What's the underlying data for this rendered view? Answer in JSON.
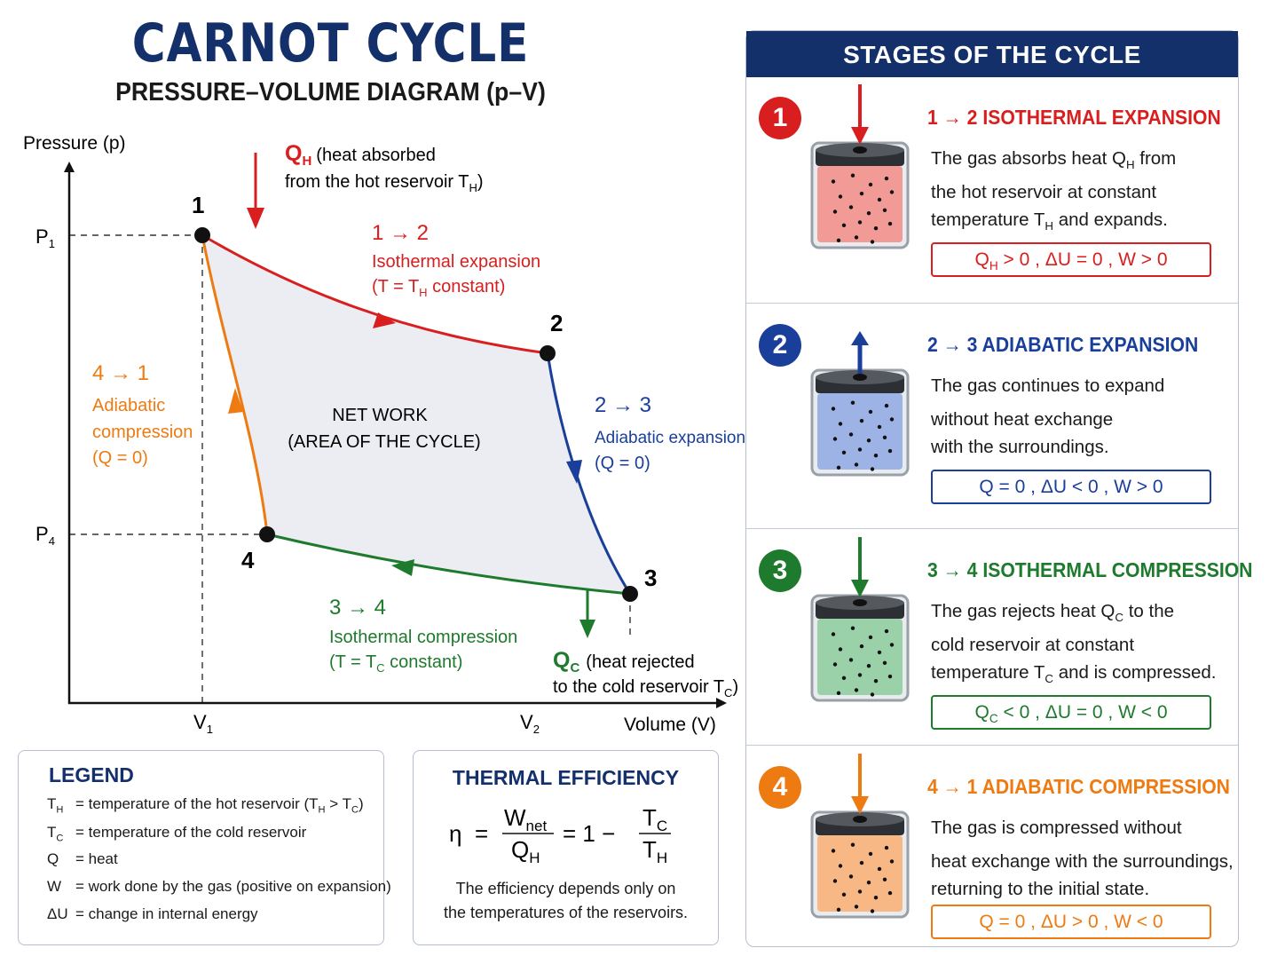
{
  "title": "CARNOT CYCLE",
  "subtitle": "PRESSURE–VOLUME DIAGRAM (p–V)",
  "diagram": {
    "y_axis_label": "Pressure (p)",
    "x_axis_label": "Volume (V)",
    "p1": "P",
    "p1_sub": "1",
    "p4": "P",
    "p4_sub": "4",
    "v1": "V",
    "v1_sub": "1",
    "v2": "V",
    "v2_sub": "2",
    "points": [
      "1",
      "2",
      "3",
      "4"
    ],
    "center_label_1": "NET WORK",
    "center_label_2": "(AREA OF THE CYCLE)",
    "qh_symbol": "Q",
    "qh_sub": "H",
    "qh_text_1": "(heat absorbed",
    "qh_text_2": "from the hot reservoir T",
    "qh_text_2_sub": "H",
    "qc_symbol": "Q",
    "qc_sub": "C",
    "qc_text_1": "(heat rejected",
    "qc_text_2": "to the cold reservoir T",
    "qc_text_2_sub": "C",
    "proc_12_arrow": "1 → 2",
    "proc_12_name": "Isothermal expansion",
    "proc_12_cond": "(T = T",
    "proc_12_cond_sub": "H",
    "proc_12_cond_end": " constant)",
    "proc_23_arrow": "2 → 3",
    "proc_23_name": "Adiabatic expansion",
    "proc_23_cond": "(Q = 0)",
    "proc_34_arrow": "3 → 4",
    "proc_34_name": "Isothermal compression",
    "proc_34_cond": "(T = T",
    "proc_34_cond_sub": "C",
    "proc_34_cond_end": " constant)",
    "proc_41_arrow": "4 → 1",
    "proc_41_name_1": "Adiabatic",
    "proc_41_name_2": "compression",
    "proc_41_cond": "(Q = 0)"
  },
  "legend": {
    "title": "LEGEND",
    "rows": [
      {
        "symbol": "T",
        "sub": "H",
        "text": "= temperature of the hot reservoir (T",
        "s1": "H",
        "mid": " > T",
        "s2": "C",
        "end": ")"
      },
      {
        "symbol": "T",
        "sub": "C",
        "text": "= temperature of the cold reservoir"
      },
      {
        "symbol": "Q",
        "text": "= heat"
      },
      {
        "symbol": "W",
        "text": "= work done by the gas (positive on expansion)"
      },
      {
        "symbol": "ΔU",
        "text": "= change in internal energy"
      }
    ]
  },
  "efficiency": {
    "title": "THERMAL EFFICIENCY",
    "eta": "η",
    "eq": "=",
    "w": "W",
    "w_sub": "net",
    "qh": "Q",
    "qh_sub": "H",
    "one_minus": "= 1 −",
    "tc": "T",
    "tc_sub": "C",
    "th": "T",
    "th_sub": "H",
    "note_1": "The efficiency depends only on",
    "note_2": "the temperatures of the reservoirs."
  },
  "stages": {
    "header": "STAGES OF THE CYCLE",
    "items": [
      {
        "num": "1",
        "title": "1 → 2  ISOTHERMAL EXPANSION",
        "color": "#d81e1e",
        "fill": "#f29a95",
        "direction": "down",
        "desc_1a": "The gas absorbs heat Q",
        "desc_1s": "H",
        "desc_1b": " from",
        "desc_2": "the hot reservoir at constant",
        "desc_3a": "temperature T",
        "desc_3s": "H",
        "desc_3b": " and expands.",
        "eq_a": "Q",
        "eq_s": "H",
        "eq_b": " > 0  ,   ΔU = 0  ,   W > 0"
      },
      {
        "num": "2",
        "title": "2 → 3  ADIABATIC EXPANSION",
        "color": "#1a3f9a",
        "fill": "#9db3e6",
        "direction": "up",
        "desc_1a": "The gas continues to expand",
        "desc_1s": "",
        "desc_1b": "",
        "desc_2": "without heat exchange",
        "desc_3a": "with the surroundings.",
        "desc_3s": "",
        "desc_3b": "",
        "eq_a": "Q = 0  ,   ΔU < 0  ,   W > 0",
        "eq_s": "",
        "eq_b": ""
      },
      {
        "num": "3",
        "title": "3 → 4  ISOTHERMAL COMPRESSION",
        "color": "#1e7a2c",
        "fill": "#9bd1a8",
        "direction": "down",
        "desc_1a": "The gas rejects heat Q",
        "desc_1s": "C",
        "desc_1b": " to the",
        "desc_2": "cold reservoir at constant",
        "desc_3a": "temperature T",
        "desc_3s": "C",
        "desc_3b": " and is compressed.",
        "eq_a": "Q",
        "eq_s": "C",
        "eq_b": " < 0  ,   ΔU = 0  ,   W < 0"
      },
      {
        "num": "4",
        "title": "4 → 1  ADIABATIC COMPRESSION",
        "color": "#ee7a12",
        "fill": "#f7b886",
        "direction": "down",
        "desc_1a": "The gas is compressed without",
        "desc_1s": "",
        "desc_1b": "",
        "desc_2": "heat exchange with the surroundings,",
        "desc_3a": "returning to the initial state.",
        "desc_3s": "",
        "desc_3b": "",
        "eq_a": "Q = 0  ,   ΔU > 0  ,   W < 0",
        "eq_s": "",
        "eq_b": ""
      }
    ]
  },
  "colors": {
    "navy": "#13306b",
    "hot": "#d81e1e",
    "adiabatic_exp": "#1a3f9a",
    "cold": "#1e7a2c",
    "adiabatic_comp": "#ee7a12"
  }
}
